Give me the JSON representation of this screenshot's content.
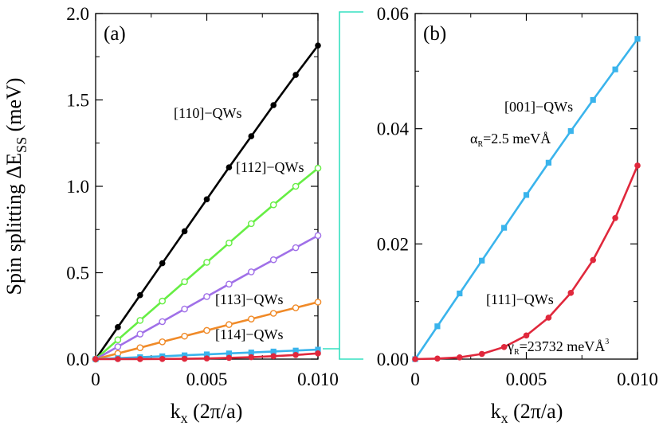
{
  "figure": {
    "ylabel": "Spin splitting ΔE",
    "ylabel_sub": "SS",
    "ylabel_unit": " (meV)",
    "connector_color": "#35e0c0"
  },
  "chart_data": [
    {
      "type": "line",
      "panel_label": "(a)",
      "xlabel": "k",
      "xlabel_sub": "x",
      "xlabel_unit": " (2π/a)",
      "xlim": [
        0,
        0.01
      ],
      "ylim": [
        0,
        2.0
      ],
      "xticks": [
        0,
        0.005,
        0.01
      ],
      "xtick_labels": [
        "0",
        "0.005",
        "0.010"
      ],
      "yticks": [
        0,
        0.5,
        1.0,
        1.5,
        2.0
      ],
      "ytick_labels": [
        "0.0",
        "0.5",
        "1.0",
        "1.5",
        "2.0"
      ],
      "x": [
        0,
        0.001,
        0.002,
        0.003,
        0.004,
        0.005,
        0.006,
        0.007,
        0.008,
        0.009,
        0.01
      ],
      "series": [
        {
          "name": "[110]−QWs",
          "color": "#000000",
          "marker": "filled-circle",
          "values": [
            0,
            0.185,
            0.37,
            0.555,
            0.74,
            0.925,
            1.11,
            1.29,
            1.47,
            1.645,
            1.815
          ]
        },
        {
          "name": "[112]−QWs",
          "color": "#66ee44",
          "marker": "open-circle",
          "values": [
            0,
            0.112,
            0.224,
            0.336,
            0.448,
            0.56,
            0.672,
            0.784,
            0.893,
            1.0,
            1.105
          ]
        },
        {
          "name": "[113]−QWs",
          "color": "#a070e8",
          "marker": "open-circle",
          "values": [
            0,
            0.072,
            0.145,
            0.217,
            0.29,
            0.362,
            0.434,
            0.505,
            0.575,
            0.645,
            0.715
          ]
        },
        {
          "name": "[114]−QWs",
          "color": "#f08a28",
          "marker": "open-circle",
          "values": [
            0,
            0.033,
            0.066,
            0.1,
            0.133,
            0.166,
            0.2,
            0.232,
            0.265,
            0.297,
            0.33
          ]
        },
        {
          "name": "[001]−QWs",
          "color": "#3ab4ec",
          "marker": "filled-square",
          "values": [
            0,
            0.0055,
            0.011,
            0.0165,
            0.022,
            0.0275,
            0.033,
            0.0385,
            0.044,
            0.0495,
            0.055
          ]
        },
        {
          "name": "[111]−QWs",
          "color": "#e0283c",
          "marker": "filled-circle",
          "values": [
            0,
            0.0001,
            0.0003,
            0.0009,
            0.002,
            0.004,
            0.007,
            0.011,
            0.017,
            0.024,
            0.033
          ]
        }
      ],
      "annotations": [
        {
          "series": "[110]−QWs",
          "text": "[110]−QWs"
        },
        {
          "series": "[112]−QWs",
          "text": "[112]−QWs"
        },
        {
          "series": "[113]−QWs",
          "text": "[113]−QWs"
        },
        {
          "series": "[114]−QWs",
          "text": "[114]−QWs"
        }
      ]
    },
    {
      "type": "line",
      "panel_label": "(b)",
      "xlabel": "k",
      "xlabel_sub": "x",
      "xlabel_unit": " (2π/a)",
      "xlim": [
        0,
        0.01
      ],
      "ylim": [
        0,
        0.06
      ],
      "xticks": [
        0,
        0.005,
        0.01
      ],
      "xtick_labels": [
        "0",
        "0.005",
        "0.010"
      ],
      "yticks": [
        0,
        0.02,
        0.04,
        0.06
      ],
      "ytick_labels": [
        "0.00",
        "0.02",
        "0.04",
        "0.06"
      ],
      "x": [
        0,
        0.001,
        0.002,
        0.003,
        0.004,
        0.005,
        0.006,
        0.007,
        0.008,
        0.009,
        0.01
      ],
      "series": [
        {
          "name": "[001]−QWs",
          "color": "#3ab4ec",
          "marker": "filled-square",
          "values": [
            0,
            0.0057,
            0.0114,
            0.0171,
            0.0228,
            0.0285,
            0.0341,
            0.0396,
            0.045,
            0.0503,
            0.0556
          ]
        },
        {
          "name": "[111]−QWs",
          "color": "#e0283c",
          "marker": "filled-circle",
          "values": [
            0,
            0.0001,
            0.0003,
            0.0009,
            0.0021,
            0.0041,
            0.0072,
            0.0115,
            0.0172,
            0.0245,
            0.0336
          ]
        }
      ],
      "annotations": [
        {
          "text": "[001]−QWs"
        },
        {
          "text": "α",
          "sub": "R",
          "rest": "=2.5 meVÅ"
        },
        {
          "text": "[111]−QWs"
        },
        {
          "text": "γ",
          "sub": "R",
          "rest": "=23732 meVÅ",
          "sup": "3"
        }
      ]
    }
  ]
}
